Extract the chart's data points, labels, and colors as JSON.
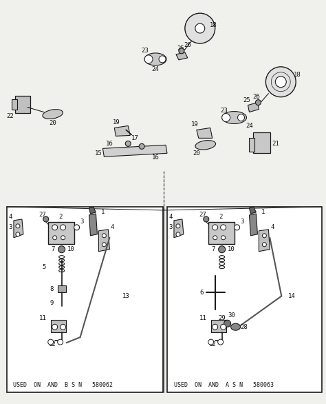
{
  "bg_color": "#f0f0ec",
  "line_color": "#1a1a1a",
  "text_color": "#111111",
  "fig_width": 4.74,
  "fig_height": 5.86,
  "dpi": 100,
  "box_text_left": "USED  ON  AND  B S N   580062",
  "box_text_right": "USED  ON  AND  A S N   580063"
}
